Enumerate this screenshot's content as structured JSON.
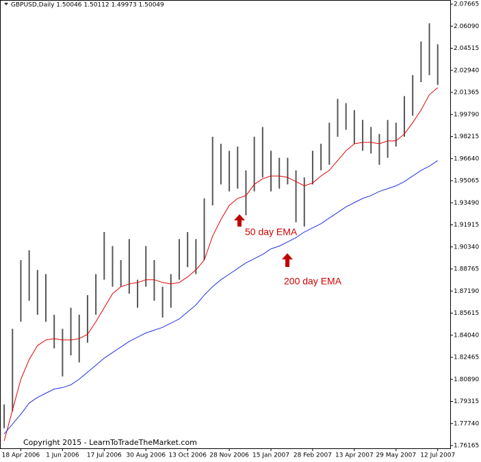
{
  "chart_data": {
    "type": "range",
    "header": "GBPUSD,Daily  1.50046 1.50112 1.49973 1.50049",
    "footer": "Copyright 2015 - LearnToTradeTheMarket.com",
    "categories": [
      null,
      null,
      "18 Apr 2006",
      null,
      null,
      null,
      null,
      "1 Jun 2006",
      null,
      null,
      null,
      null,
      "17 Jul 2006",
      null,
      null,
      null,
      null,
      "30 Aug 2006",
      null,
      null,
      null,
      null,
      "13 Oct 2006",
      null,
      null,
      null,
      null,
      "28 Nov 2006",
      null,
      null,
      null,
      null,
      "15 Jan 2007",
      null,
      null,
      null,
      null,
      "28 Feb 2007",
      null,
      null,
      null,
      null,
      "13 Apr 2007",
      null,
      null,
      null,
      null,
      "29 May 2007",
      null,
      null,
      null,
      null,
      "12 Jul 2007",
      null
    ],
    "bars": {
      "color": "#555555",
      "high": [
        1.791,
        1.845,
        1.894,
        1.901,
        1.887,
        1.884,
        1.855,
        1.845,
        1.86,
        1.855,
        1.869,
        1.884,
        1.914,
        1.904,
        1.894,
        1.909,
        1.88,
        1.904,
        1.894,
        1.875,
        1.884,
        1.909,
        1.914,
        1.909,
        1.938,
        1.982,
        1.977,
        1.972,
        1.975,
        1.958,
        1.982,
        1.989,
        1.972,
        1.967,
        1.967,
        1.958,
        1.953,
        1.972,
        1.977,
        1.992,
        2.009,
        2.006,
        2.001,
        1.994,
        1.989,
        1.984,
        1.994,
        1.992,
        2.011,
        2.026,
        2.05,
        2.063,
        2.048
      ],
      "low": [
        1.774,
        1.786,
        1.85,
        1.865,
        1.855,
        1.85,
        1.831,
        1.811,
        1.826,
        1.821,
        1.835,
        1.855,
        1.88,
        1.875,
        1.875,
        1.87,
        1.86,
        1.875,
        1.865,
        1.853,
        1.86,
        1.88,
        1.889,
        1.884,
        1.894,
        1.933,
        1.948,
        1.943,
        1.945,
        1.926,
        1.943,
        1.953,
        1.943,
        1.945,
        1.948,
        1.921,
        1.918,
        1.948,
        1.958,
        1.962,
        1.982,
        1.987,
        1.977,
        1.972,
        1.97,
        1.962,
        1.967,
        1.975,
        1.982,
        1.997,
        2.021,
        2.026,
        2.019
      ]
    },
    "lines": [
      {
        "label": "50 day EMA",
        "color": "#e00000",
        "values": [
          1.765,
          1.787,
          1.809,
          1.823,
          1.833,
          1.837,
          1.838,
          1.837,
          1.837,
          1.838,
          1.841,
          1.85,
          1.86,
          1.87,
          1.875,
          1.877,
          1.878,
          1.88,
          1.88,
          1.878,
          1.877,
          1.878,
          1.882,
          1.887,
          1.894,
          1.911,
          1.923,
          1.933,
          1.938,
          1.94,
          1.948,
          1.952,
          1.954,
          1.954,
          1.953,
          1.95,
          1.947,
          1.949,
          1.954,
          1.958,
          1.965,
          1.972,
          1.977,
          1.978,
          1.978,
          1.977,
          1.979,
          1.979,
          1.984,
          1.992,
          2.001,
          2.012,
          2.017
        ]
      },
      {
        "label": "200 day EMA",
        "color": "#2030e0",
        "values": [
          1.77,
          1.777,
          1.784,
          1.792,
          1.796,
          1.799,
          1.802,
          1.803,
          1.805,
          1.809,
          1.814,
          1.819,
          1.824,
          1.828,
          1.832,
          1.836,
          1.839,
          1.842,
          1.844,
          1.846,
          1.849,
          1.852,
          1.857,
          1.862,
          1.869,
          1.875,
          1.88,
          1.884,
          1.888,
          1.892,
          1.895,
          1.898,
          1.902,
          1.904,
          1.907,
          1.91,
          1.914,
          1.917,
          1.92,
          1.924,
          1.928,
          1.932,
          1.935,
          1.938,
          1.94,
          1.943,
          1.945,
          1.947,
          1.95,
          1.954,
          1.958,
          1.961,
          1.965
        ]
      }
    ],
    "ylim": [
      1.76165,
      2.07665
    ],
    "yticks": [
      1.76165,
      {
        "value": 1.7774,
        "label": "1.77740"
      },
      1.79315,
      {
        "value": 1.8089,
        "label": "1.80890"
      },
      1.82465,
      {
        "value": 1.8404,
        "label": "1.84040"
      },
      1.85615,
      {
        "value": 1.8719,
        "label": "1.87190"
      },
      1.88765,
      {
        "value": 1.9034,
        "label": "1.90340"
      },
      1.91915,
      {
        "value": 1.9349,
        "label": "1.93490"
      },
      1.95065,
      {
        "value": 1.9664,
        "label": "1.96640"
      },
      1.98215,
      {
        "value": 1.9979,
        "label": "1.99790"
      },
      2.01365,
      {
        "value": 2.0294,
        "label": "2.02940"
      },
      2.04515,
      {
        "value": 2.0609,
        "label": "2.06090"
      },
      2.07665
    ]
  }
}
